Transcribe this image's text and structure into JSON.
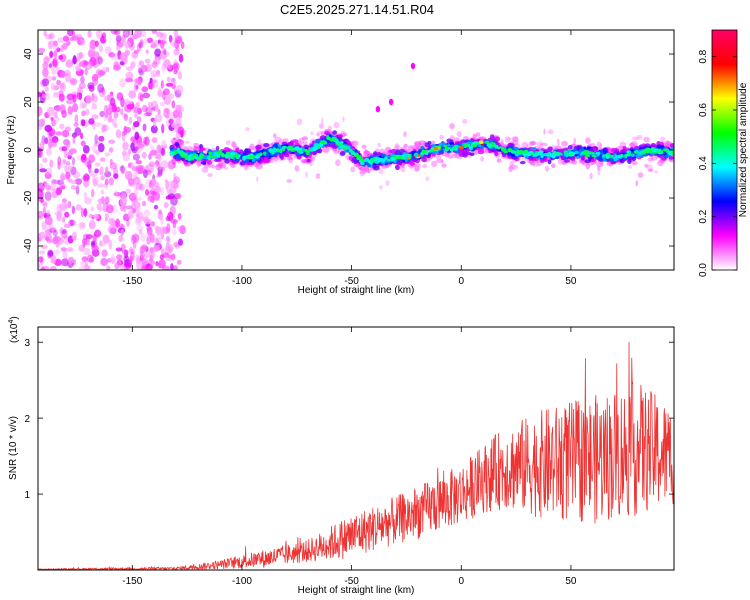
{
  "chart_data": [
    {
      "type": "heatmap",
      "title": "C2E5.2025.271.14.51.R04",
      "xlabel": "Height of straight line (km)",
      "ylabel": "Frequency (Hz)",
      "xlim": [
        -193,
        97
      ],
      "ylim": [
        -50,
        50
      ],
      "xticks": [
        "-150",
        "-100",
        "-50",
        "0",
        "50"
      ],
      "yticks": [
        "40",
        "20",
        "0",
        "-20",
        "-40"
      ],
      "colorbar": {
        "label": "Normalized spectral amplitude",
        "range": [
          0.0,
          0.9
        ],
        "ticks": [
          "0.0",
          "0.2",
          "0.4",
          "0.6",
          "0.8"
        ],
        "colors": [
          "#ffffff",
          "#ff00ff",
          "#0000ff",
          "#00ffff",
          "#00ff00",
          "#ffff00",
          "#ff0000",
          "#ff0066"
        ]
      },
      "noise_region_x": [
        -193,
        -130
      ],
      "band_profile": [
        {
          "x": -130,
          "y": 0
        },
        {
          "x": -125,
          "y": -3
        },
        {
          "x": -110,
          "y": -2
        },
        {
          "x": -95,
          "y": -3
        },
        {
          "x": -80,
          "y": 1
        },
        {
          "x": -70,
          "y": -1
        },
        {
          "x": -60,
          "y": 5
        },
        {
          "x": -50,
          "y": 0
        },
        {
          "x": -45,
          "y": -5
        },
        {
          "x": -35,
          "y": -4
        },
        {
          "x": -20,
          "y": -2
        },
        {
          "x": -10,
          "y": 1
        },
        {
          "x": 0,
          "y": 1
        },
        {
          "x": 10,
          "y": 3
        },
        {
          "x": 25,
          "y": -1
        },
        {
          "x": 40,
          "y": -2
        },
        {
          "x": 55,
          "y": -1
        },
        {
          "x": 70,
          "y": -3
        },
        {
          "x": 85,
          "y": 0
        },
        {
          "x": 97,
          "y": -1
        }
      ],
      "outliers": [
        {
          "x": -22,
          "y": 35
        },
        {
          "x": -32,
          "y": 20
        },
        {
          "x": -38,
          "y": 17
        }
      ]
    },
    {
      "type": "line",
      "xlabel": "Height of straight line (km)",
      "ylabel": "SNR (10 * v/v)",
      "multiplier": "(x10",
      "multiplier_exp": "4",
      "multiplier_close": ")",
      "xlim": [
        -193,
        97
      ],
      "ylim": [
        0,
        3.2
      ],
      "xticks": [
        "-150",
        "-100",
        "-50",
        "0",
        "50"
      ],
      "yticks": [
        "3",
        "2",
        "1"
      ],
      "color": "#ee3333",
      "envelope": [
        {
          "x": -193,
          "mean": 0.01,
          "amp": 0.005
        },
        {
          "x": -130,
          "mean": 0.02,
          "amp": 0.02
        },
        {
          "x": -110,
          "mean": 0.07,
          "amp": 0.06
        },
        {
          "x": -90,
          "mean": 0.15,
          "amp": 0.12
        },
        {
          "x": -70,
          "mean": 0.25,
          "amp": 0.15
        },
        {
          "x": -50,
          "mean": 0.45,
          "amp": 0.3
        },
        {
          "x": -40,
          "mean": 0.55,
          "amp": 0.3
        },
        {
          "x": -20,
          "mean": 0.75,
          "amp": 0.35
        },
        {
          "x": 0,
          "mean": 1.0,
          "amp": 0.4
        },
        {
          "x": 10,
          "mean": 1.2,
          "amp": 0.45
        },
        {
          "x": 20,
          "mean": 1.35,
          "amp": 0.55
        },
        {
          "x": 40,
          "mean": 1.4,
          "amp": 0.75
        },
        {
          "x": 60,
          "mean": 1.45,
          "amp": 0.85
        },
        {
          "x": 80,
          "mean": 1.6,
          "amp": 0.9
        },
        {
          "x": 97,
          "mean": 1.5,
          "amp": 0.65
        }
      ]
    }
  ]
}
